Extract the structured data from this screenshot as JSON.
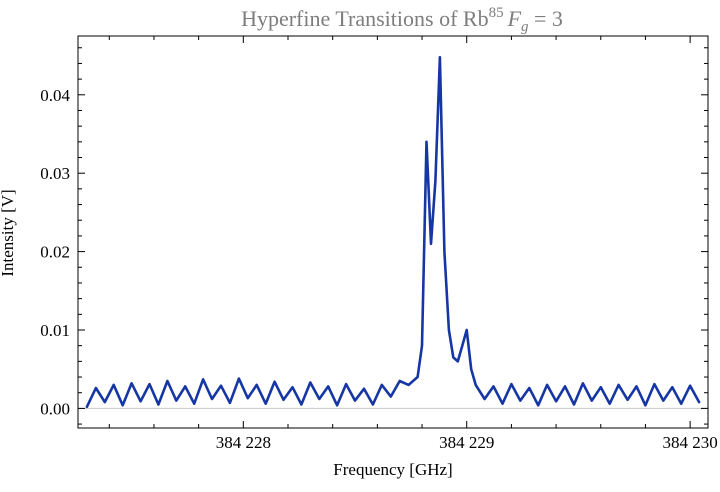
{
  "chart_data": {
    "type": "line",
    "title": {
      "base": "Hyperfine Transitions of Rb",
      "superscript": "85",
      "variable": "F",
      "subscript": "g",
      "equals": " = 3"
    },
    "xlabel": "Frequency [GHz]",
    "ylabel": "Intensity [V]",
    "xlim": [
      384227.26,
      384230.08
    ],
    "ylim": [
      -0.0025,
      0.0475
    ],
    "x_ticks": [
      {
        "value": 384228,
        "label": "384 228"
      },
      {
        "value": 384229,
        "label": "384 229"
      },
      {
        "value": 384230,
        "label": "384 230"
      }
    ],
    "y_ticks": [
      {
        "value": 0.0,
        "label": "0.00"
      },
      {
        "value": 0.01,
        "label": "0.01"
      },
      {
        "value": 0.02,
        "label": "0.02"
      },
      {
        "value": 0.03,
        "label": "0.03"
      },
      {
        "value": 0.04,
        "label": "0.04"
      }
    ],
    "grid": false,
    "colors": {
      "series": "#1637a3",
      "zero_line": "#c8c8c8",
      "frame": "#000000",
      "title": "#7d7d7d"
    },
    "series": [
      {
        "x": [
          384227.3,
          384227.34,
          384227.38,
          384227.42,
          384227.46,
          384227.5,
          384227.54,
          384227.58,
          384227.62,
          384227.66,
          384227.7,
          384227.74,
          384227.78,
          384227.82,
          384227.86,
          384227.9,
          384227.94,
          384227.98,
          384228.02,
          384228.06,
          384228.1,
          384228.14,
          384228.18,
          384228.22,
          384228.26,
          384228.3,
          384228.34,
          384228.38,
          384228.42,
          384228.46,
          384228.5,
          384228.54,
          384228.58,
          384228.62,
          384228.66,
          384228.7,
          384228.74,
          384228.78,
          384228.8,
          384228.82,
          384228.84,
          384228.86,
          384228.88,
          384228.9,
          384228.92,
          384228.94,
          384228.96,
          384228.98,
          384229.0,
          384229.02,
          384229.04,
          384229.08,
          384229.12,
          384229.16,
          384229.2,
          384229.24,
          384229.28,
          384229.32,
          384229.36,
          384229.4,
          384229.44,
          384229.48,
          384229.52,
          384229.56,
          384229.6,
          384229.64,
          384229.68,
          384229.72,
          384229.76,
          384229.8,
          384229.84,
          384229.88,
          384229.92,
          384229.96,
          384230.0,
          384230.04
        ],
        "y": [
          0.0002,
          0.0026,
          0.0008,
          0.003,
          0.0004,
          0.0032,
          0.0009,
          0.0031,
          0.0005,
          0.0035,
          0.001,
          0.0028,
          0.0006,
          0.0037,
          0.0012,
          0.0029,
          0.0007,
          0.0038,
          0.0013,
          0.003,
          0.0006,
          0.0034,
          0.0011,
          0.0027,
          0.0005,
          0.0033,
          0.0012,
          0.0028,
          0.0004,
          0.0031,
          0.001,
          0.0025,
          0.0005,
          0.003,
          0.0015,
          0.0035,
          0.003,
          0.004,
          0.008,
          0.034,
          0.021,
          0.029,
          0.0448,
          0.02,
          0.01,
          0.0065,
          0.006,
          0.008,
          0.01,
          0.005,
          0.003,
          0.0012,
          0.0028,
          0.0006,
          0.0031,
          0.001,
          0.0026,
          0.0004,
          0.003,
          0.0009,
          0.0028,
          0.0005,
          0.0032,
          0.001,
          0.0027,
          0.0006,
          0.003,
          0.0011,
          0.0028,
          0.0004,
          0.0031,
          0.001,
          0.0027,
          0.0006,
          0.0029,
          0.0008
        ]
      }
    ]
  }
}
